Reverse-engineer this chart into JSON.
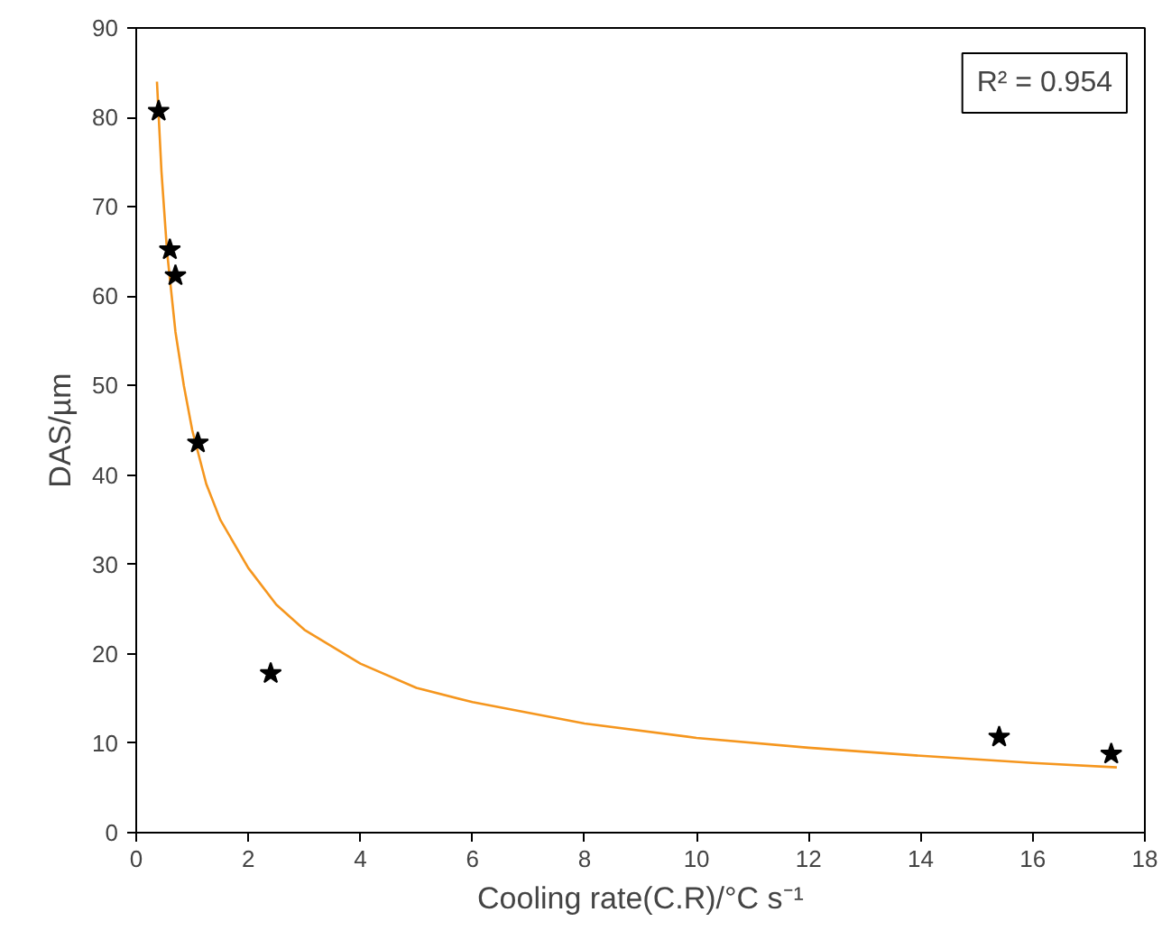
{
  "chart_data": {
    "type": "scatter",
    "xlabel": "Cooling rate(C.R)/°C s⁻¹",
    "ylabel": "DAS/µm",
    "xlim": [
      0,
      18
    ],
    "ylim": [
      0,
      90
    ],
    "xticks": [
      0,
      2,
      4,
      6,
      8,
      10,
      12,
      14,
      16,
      18
    ],
    "yticks": [
      0,
      10,
      20,
      30,
      40,
      50,
      60,
      70,
      80,
      90
    ],
    "grid": false,
    "marker": "star",
    "annotations": [
      "R² = 0.954"
    ],
    "series": [
      {
        "color": "#000000",
        "x": [
          0.4,
          0.6,
          0.7,
          1.1,
          2.4,
          15.4,
          17.4
        ],
        "values": [
          80.7,
          65.2,
          62.3,
          43.6,
          17.8,
          10.7,
          8.8
        ]
      },
      {
        "type": "line",
        "color": "#f5961e",
        "marker": "none",
        "x": [
          0.37,
          0.45,
          0.55,
          0.7,
          0.85,
          1.0,
          1.25,
          1.5,
          2.0,
          2.5,
          3.0,
          4.0,
          5.0,
          6.0,
          8.0,
          10.0,
          12.0,
          14.0,
          16.0,
          17.5
        ],
        "values": [
          84,
          74,
          65,
          56,
          50,
          45,
          39,
          35,
          29.6,
          25.5,
          22.7,
          18.9,
          16.2,
          14.6,
          12.2,
          10.6,
          9.5,
          8.6,
          7.8,
          7.3
        ]
      }
    ]
  }
}
